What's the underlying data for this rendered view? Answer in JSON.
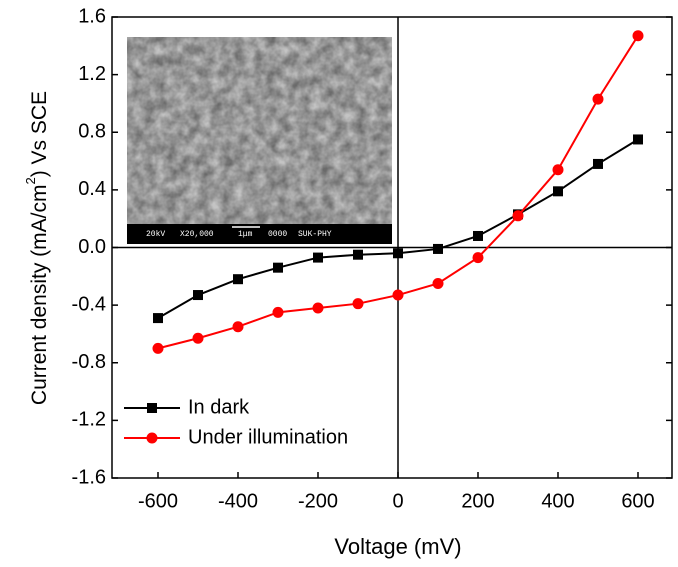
{
  "chart_data": {
    "type": "line",
    "x_label": "Voltage (mV)",
    "y_label": [
      "Current density (mA/cm",
      "2",
      ") Vs SCE"
    ],
    "inset_label": [
      "20kV",
      "X20,000",
      "1μm",
      "0000",
      "SUK-PHY"
    ],
    "x": [
      -600,
      -500,
      -400,
      -300,
      -200,
      -100,
      0,
      100,
      200,
      300,
      400,
      500,
      600
    ],
    "series": [
      {
        "name": "In dark",
        "color": "#000000",
        "marker": "square",
        "values": [
          -0.49,
          -0.33,
          -0.22,
          -0.14,
          -0.07,
          -0.05,
          -0.04,
          -0.01,
          0.08,
          0.23,
          0.39,
          0.58,
          0.75
        ]
      },
      {
        "name": "Under illumination",
        "color": "#ff0000",
        "marker": "circle",
        "values": [
          -0.7,
          -0.63,
          -0.55,
          -0.45,
          -0.42,
          -0.39,
          -0.33,
          -0.25,
          -0.07,
          0.22,
          0.54,
          1.03,
          1.47
        ]
      }
    ],
    "xlim": [
      -715,
      685
    ],
    "ylim": [
      -1.6,
      1.6
    ],
    "xticks": [
      -600,
      -400,
      -200,
      0,
      200,
      400,
      600
    ],
    "yticks": [
      1.6,
      1.2,
      0.8,
      0.4,
      {
        "value": 0,
        "label": "0.0"
      },
      -0.4,
      -0.8,
      -1.2,
      -1.6
    ],
    "grid": false,
    "legend": "lower left"
  }
}
